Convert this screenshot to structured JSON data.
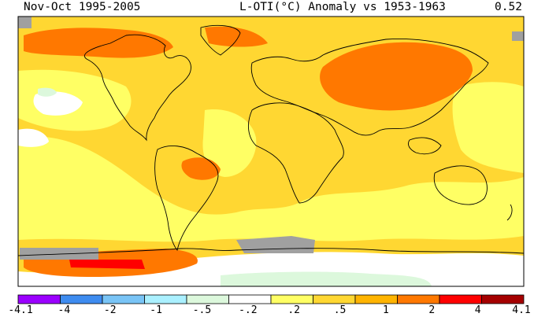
{
  "header": {
    "left": "Nov-Oct 1995-2005",
    "center": "L-OTI(°C) Anomaly vs 1953-1963",
    "right": "0.52"
  },
  "legend": {
    "bins": [
      {
        "color": "#9b00ff"
      },
      {
        "color": "#3e8cf0"
      },
      {
        "color": "#79c4f6"
      },
      {
        "color": "#aaf0ff"
      },
      {
        "color": "#dcf8dc"
      },
      {
        "color": "#ffffff"
      },
      {
        "color": "#ffff64"
      },
      {
        "color": "#ffd732"
      },
      {
        "color": "#ffb400"
      },
      {
        "color": "#ff7800"
      },
      {
        "color": "#ff0000"
      },
      {
        "color": "#a50000"
      }
    ],
    "labels": [
      "-4.1",
      "-4",
      "-2",
      "-1",
      "-.5",
      "-.2",
      ".2",
      ".5",
      "1",
      "2",
      "4",
      "4.1"
    ]
  },
  "map_colors": {
    "land_outline": "#000000",
    "missing_data": "#a0a0a0",
    "frame": "#000000"
  }
}
